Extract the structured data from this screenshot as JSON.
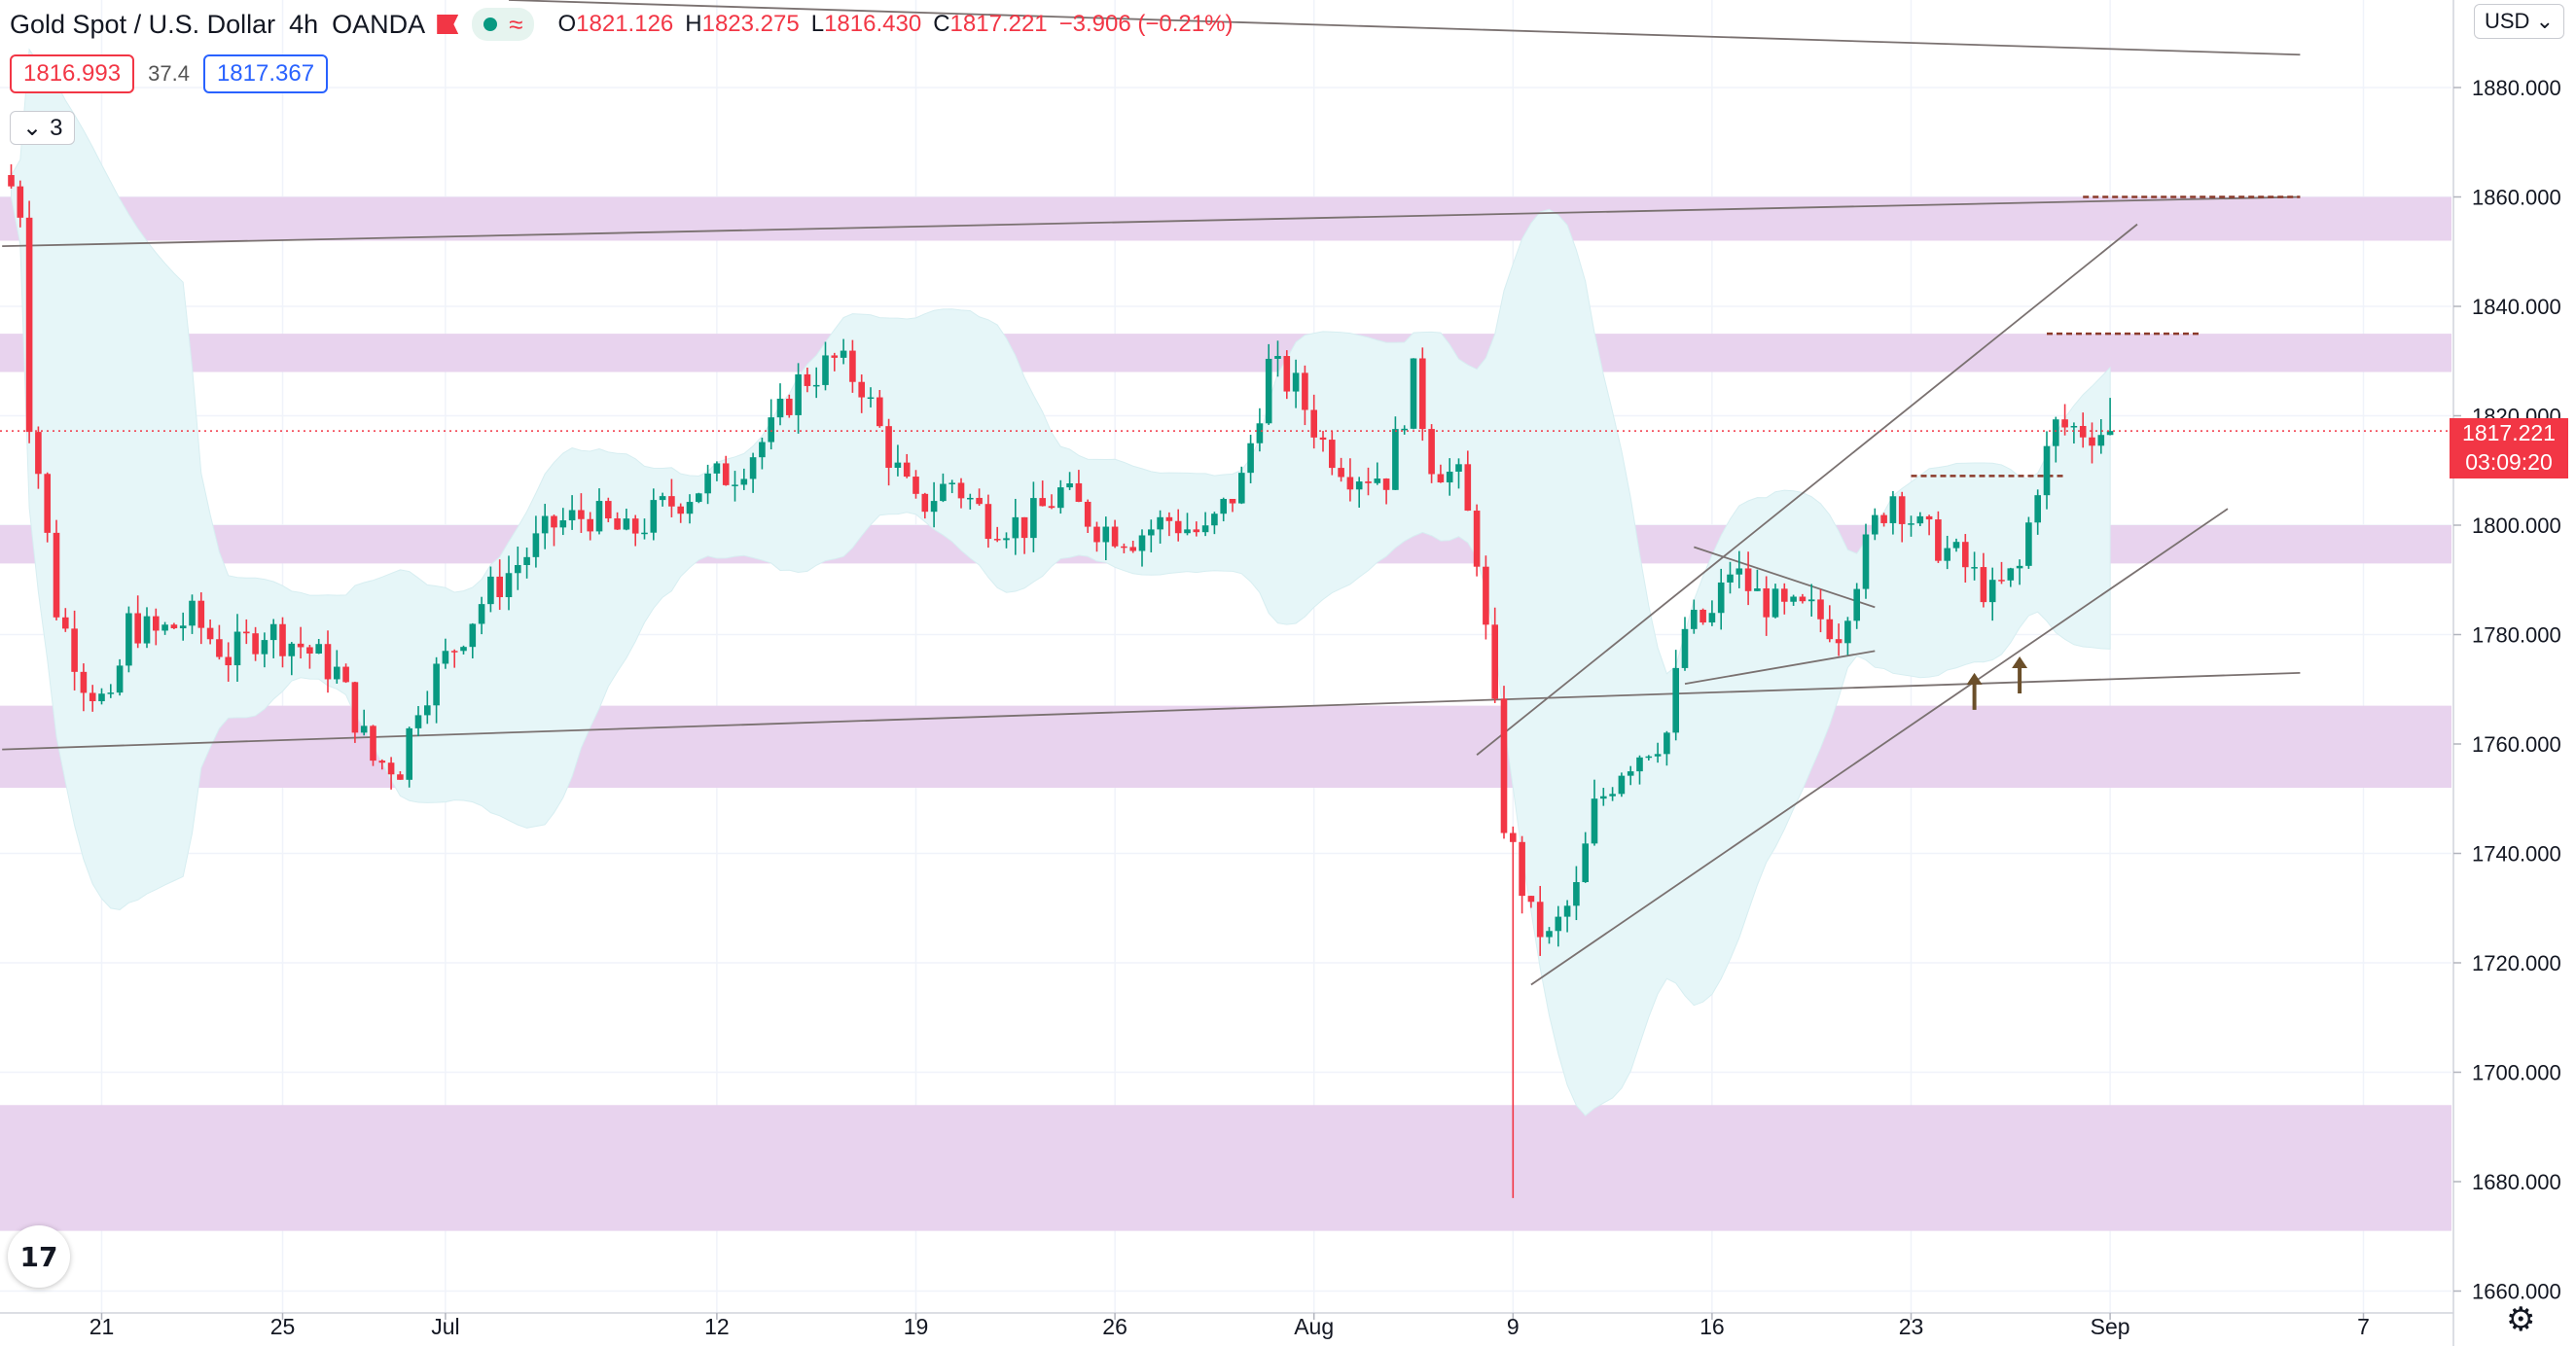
{
  "header": {
    "symbol": "Gold Spot / U.S. Dollar",
    "timeframe": "4h",
    "broker": "OANDA",
    "ohlc": {
      "o_label": "O",
      "o": "1821.126",
      "h_label": "H",
      "h": "1823.275",
      "l_label": "L",
      "l": "1816.430",
      "c_label": "C",
      "c": "1817.221",
      "change": "−3.906 (−0.21%)"
    },
    "sell_price": "1816.993",
    "spread": "37.4",
    "buy_price": "1817.367",
    "indicators_toggle": "3",
    "currency": "USD"
  },
  "price_tag": {
    "price": "1817.221",
    "countdown": "03:09:20"
  },
  "colors": {
    "up": "#089981",
    "down": "#f23645",
    "zone": "#e8d3ee",
    "band": "#e6f6f8",
    "dashed": "#8b3a2a",
    "arrow": "#6b4f2a"
  },
  "icons": {
    "logo": "tradingview-logo-icon",
    "settings": "gear-icon",
    "collapse": "chevron-down-icon"
  },
  "chart_data": {
    "type": "candlestick",
    "title": "Gold Spot / U.S. Dollar",
    "y_ticks": [
      "1880.000",
      "1860.000",
      "1840.000",
      "1820.000",
      "1800.000",
      "1780.000",
      "1760.000",
      "1740.000",
      "1720.000",
      "1700.000",
      "1680.000",
      "1660.000"
    ],
    "ylim": [
      1656,
      1896
    ],
    "x_ticks": [
      {
        "label": "21",
        "i": 10
      },
      {
        "label": "25",
        "i": 30
      },
      {
        "label": "Jul",
        "i": 48
      },
      {
        "label": "12",
        "i": 78
      },
      {
        "label": "19",
        "i": 100
      },
      {
        "label": "26",
        "i": 122
      },
      {
        "label": "Aug",
        "i": 144
      },
      {
        "label": "9",
        "i": 166
      },
      {
        "label": "16",
        "i": 188
      },
      {
        "label": "23",
        "i": 210
      },
      {
        "label": "Sep",
        "i": 232
      },
      {
        "label": "7",
        "i": 260
      }
    ],
    "candles": {
      "count": 233,
      "last_close": 1817.221
    },
    "path": [
      [
        0,
        1862
      ],
      [
        1,
        1858
      ],
      [
        2,
        1820
      ],
      [
        3,
        1810
      ],
      [
        5,
        1785
      ],
      [
        8,
        1772
      ],
      [
        11,
        1766
      ],
      [
        13,
        1782
      ],
      [
        16,
        1780
      ],
      [
        20,
        1783
      ],
      [
        24,
        1776
      ],
      [
        28,
        1781
      ],
      [
        32,
        1778
      ],
      [
        36,
        1773
      ],
      [
        40,
        1757
      ],
      [
        43,
        1756
      ],
      [
        45,
        1768
      ],
      [
        49,
        1778
      ],
      [
        52,
        1786
      ],
      [
        56,
        1793
      ],
      [
        60,
        1800
      ],
      [
        64,
        1802
      ],
      [
        68,
        1798
      ],
      [
        72,
        1803
      ],
      [
        76,
        1807
      ],
      [
        80,
        1810
      ],
      [
        84,
        1817
      ],
      [
        87,
        1826
      ],
      [
        91,
        1830
      ],
      [
        94,
        1826
      ],
      [
        97,
        1813
      ],
      [
        100,
        1803
      ],
      [
        104,
        1808
      ],
      [
        108,
        1801
      ],
      [
        112,
        1800
      ],
      [
        116,
        1806
      ],
      [
        120,
        1800
      ],
      [
        124,
        1798
      ],
      [
        128,
        1801
      ],
      [
        132,
        1798
      ],
      [
        136,
        1808
      ],
      [
        139,
        1829
      ],
      [
        142,
        1825
      ],
      [
        145,
        1815
      ],
      [
        148,
        1810
      ],
      [
        152,
        1809
      ],
      [
        155,
        1827
      ],
      [
        157,
        1812
      ],
      [
        160,
        1808
      ],
      [
        162,
        1795
      ],
      [
        164,
        1765
      ],
      [
        165,
        1746
      ],
      [
        166,
        1740
      ],
      [
        168,
        1728
      ],
      [
        170,
        1724
      ],
      [
        173,
        1733
      ],
      [
        175,
        1748
      ],
      [
        178,
        1756
      ],
      [
        181,
        1760
      ],
      [
        183,
        1762
      ],
      [
        185,
        1781
      ],
      [
        188,
        1783
      ],
      [
        190,
        1792
      ],
      [
        193,
        1787
      ],
      [
        196,
        1784
      ],
      [
        199,
        1784
      ],
      [
        202,
        1781
      ],
      [
        204,
        1791
      ],
      [
        206,
        1800
      ],
      [
        208,
        1806
      ],
      [
        211,
        1799
      ],
      [
        215,
        1794
      ],
      [
        219,
        1787
      ],
      [
        222,
        1792
      ],
      [
        224,
        1808
      ],
      [
        226,
        1818
      ],
      [
        232,
        1817
      ]
    ],
    "zones": [
      [
        1852,
        1860
      ],
      [
        1828,
        1835
      ],
      [
        1793,
        1800
      ],
      [
        1752,
        1767
      ],
      [
        1671,
        1694
      ]
    ],
    "dashed_levels": [
      {
        "price": 1860,
        "from_i": 229,
        "to_i": 253
      },
      {
        "price": 1835,
        "from_i": 225,
        "to_i": 242
      },
      {
        "price": 1809,
        "from_i": 210,
        "to_i": 227
      }
    ],
    "trendlines": [
      {
        "from": [
          -1,
          1759
        ],
        "to": [
          253,
          1773
        ]
      },
      {
        "from": [
          -1,
          1851
        ],
        "to": [
          253,
          1860
        ]
      },
      {
        "from": [
          55,
          1896
        ],
        "to": [
          253,
          1886
        ]
      },
      {
        "from": [
          162,
          1758
        ],
        "to": [
          235,
          1855
        ]
      },
      {
        "from": [
          168,
          1716
        ],
        "to": [
          245,
          1803
        ]
      },
      {
        "from": [
          185,
          1771
        ],
        "to": [
          206,
          1777
        ]
      },
      {
        "from": [
          186,
          1796
        ],
        "to": [
          206,
          1785
        ]
      }
    ],
    "arrows": [
      {
        "i": 217,
        "price": 1773
      },
      {
        "i": 222,
        "price": 1776
      }
    ],
    "current_price": 1817.221
  }
}
